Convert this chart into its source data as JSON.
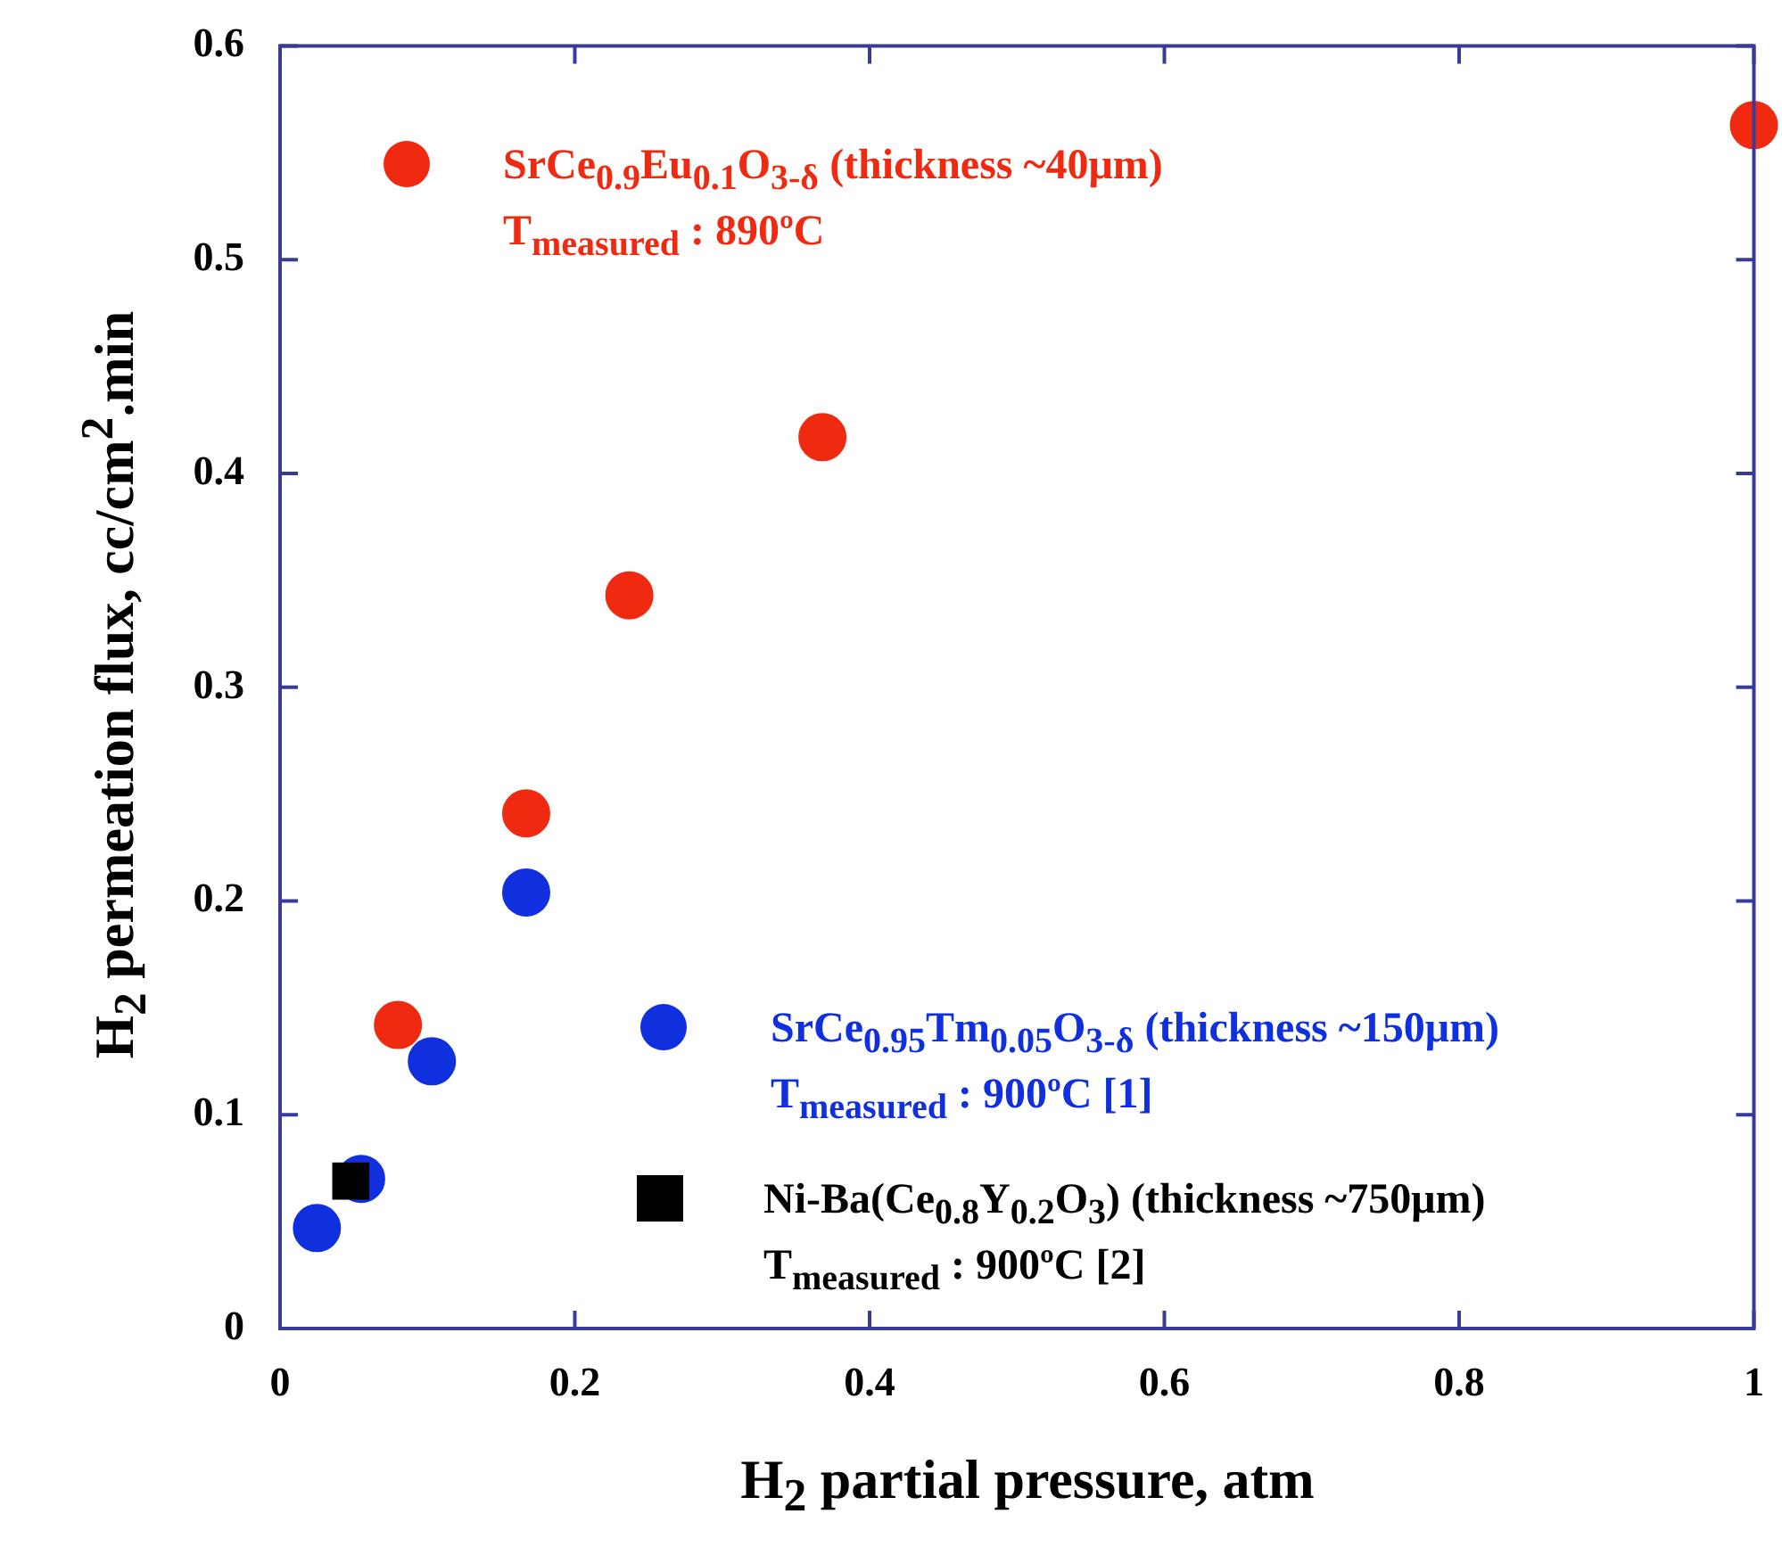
{
  "chart_data": {
    "type": "scatter",
    "xlabel": "H$_{2}$ partial pressure, atm",
    "ylabel": "H$_{2}$ permeation flux, cc/cm$^{2}$.min",
    "xlim": [
      0,
      1
    ],
    "xticks": [
      0,
      0.2,
      0.4,
      0.6,
      0.8,
      1
    ],
    "ylim": [
      0,
      0.6
    ],
    "yticks": [
      0,
      0.1,
      0.2,
      0.3,
      0.4,
      0.5,
      0.6
    ],
    "legend": "top left",
    "marker": "circle",
    "series": [
      {
        "name": "SrCe$_{0.9}$Eu$_{0.1}$O$_{3-δ}$ (thickness ~40μm)",
        "color": "#f02a10",
        "x": [
          0.08,
          0.167,
          0.237,
          0.368,
          1.0
        ],
        "values": [
          0.142,
          0.241,
          0.343,
          0.417,
          0.563
        ]
      },
      {
        "name": "SrCe$_{0.95}$Tm$_{0.05}$O$_{3-δ}$ (thickness ~150μm)",
        "color": "#1030e0",
        "x": [
          0.025,
          0.055,
          0.103,
          0.167
        ],
        "values": [
          0.047,
          0.07,
          0.125,
          0.204
        ]
      },
      {
        "name": "Ni-Ba(Ce$_{0.8}$Y$_{0.2}$O$_{3}$) (thickness ~750μm)",
        "color": "#000000",
        "marker": "square",
        "x": [
          0.048
        ],
        "values": [
          0.069
        ]
      }
    ],
    "annotations": [
      "T$_{measured}$ : 890ºC",
      "T$_{measured}$ : 900ºC [1]",
      "T$_{measured}$ : 900ºC [2]"
    ]
  }
}
